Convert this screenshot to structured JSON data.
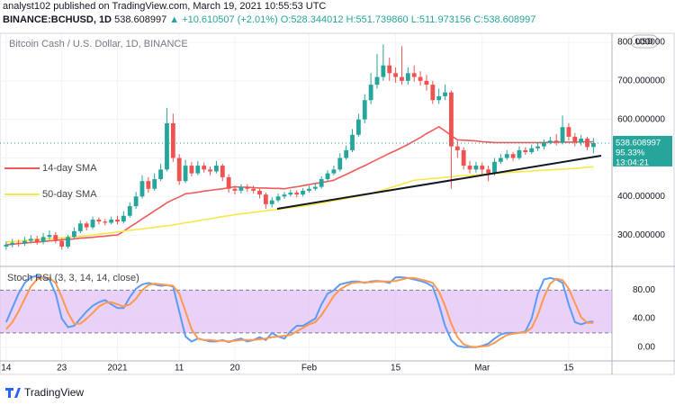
{
  "header": {
    "byline": "analyst102 published on TradingView.com, March 19, 2021 10:55:53 UTC",
    "symbol": "BINANCE:BCHUSD, 1D",
    "price": "538.608997",
    "change": "▲ +10.610507 (+2.01%)",
    "open": "O:528.344012",
    "high": "H:551.739860",
    "low": "L:511.973156",
    "close": "C:538.608997"
  },
  "footer": {
    "brand": "TradingView"
  },
  "chart_data": [
    {
      "type": "candlestick",
      "title": "Bitcoin Cash / U.S. Dollar, 1D, BINANCE",
      "x": [
        "2020-12-14",
        "2020-12-15",
        "2020-12-16",
        "2020-12-17",
        "2020-12-18",
        "2020-12-19",
        "2020-12-20",
        "2020-12-21",
        "2020-12-22",
        "2020-12-23",
        "2020-12-24",
        "2020-12-25",
        "2020-12-26",
        "2020-12-27",
        "2020-12-28",
        "2020-12-29",
        "2020-12-30",
        "2020-12-31",
        "2021-01-01",
        "2021-01-02",
        "2021-01-03",
        "2021-01-04",
        "2021-01-05",
        "2021-01-06",
        "2021-01-07",
        "2021-01-08",
        "2021-01-09",
        "2021-01-10",
        "2021-01-11",
        "2021-01-12",
        "2021-01-13",
        "2021-01-14",
        "2021-01-15",
        "2021-01-16",
        "2021-01-17",
        "2021-01-18",
        "2021-01-19",
        "2021-01-20",
        "2021-01-21",
        "2021-01-22",
        "2021-01-23",
        "2021-01-24",
        "2021-01-25",
        "2021-01-26",
        "2021-01-27",
        "2021-01-28",
        "2021-01-29",
        "2021-01-30",
        "2021-01-31",
        "2021-02-01",
        "2021-02-02",
        "2021-02-03",
        "2021-02-04",
        "2021-02-05",
        "2021-02-06",
        "2021-02-07",
        "2021-02-08",
        "2021-02-09",
        "2021-02-10",
        "2021-02-11",
        "2021-02-12",
        "2021-02-13",
        "2021-02-14",
        "2021-02-15",
        "2021-02-16",
        "2021-02-17",
        "2021-02-18",
        "2021-02-19",
        "2021-02-20",
        "2021-02-21",
        "2021-02-22",
        "2021-02-23",
        "2021-02-24",
        "2021-02-25",
        "2021-02-26",
        "2021-02-27",
        "2021-02-28",
        "2021-03-01",
        "2021-03-02",
        "2021-03-03",
        "2021-03-04",
        "2021-03-05",
        "2021-03-06",
        "2021-03-07",
        "2021-03-08",
        "2021-03-09",
        "2021-03-10",
        "2021-03-11",
        "2021-03-12",
        "2021-03-13",
        "2021-03-14",
        "2021-03-15",
        "2021-03-16",
        "2021-03-17",
        "2021-03-18",
        "2021-03-19"
      ],
      "open": [
        270,
        275,
        280,
        278,
        285,
        290,
        282,
        295,
        300,
        285,
        270,
        295,
        310,
        330,
        320,
        340,
        335,
        332,
        340,
        335,
        350,
        375,
        400,
        440,
        420,
        445,
        470,
        590,
        500,
        440,
        480,
        460,
        480,
        470,
        465,
        480,
        450,
        420,
        415,
        425,
        420,
        415,
        405,
        380,
        390,
        400,
        405,
        410,
        405,
        415,
        420,
        425,
        445,
        460,
        470,
        500,
        520,
        560,
        600,
        650,
        690,
        710,
        740,
        720,
        710,
        700,
        720,
        710,
        700,
        690,
        650,
        660,
        670,
        530,
        520,
        480,
        470,
        480,
        470,
        460,
        490,
        500,
        510,
        500,
        520,
        515,
        525,
        530,
        540,
        545,
        540,
        580,
        555,
        540,
        550,
        528.344012
      ],
      "high": [
        283,
        290,
        288,
        295,
        300,
        298,
        305,
        312,
        308,
        292,
        300,
        320,
        338,
        335,
        348,
        346,
        342,
        348,
        350,
        362,
        385,
        412,
        455,
        450,
        460,
        485,
        630,
        615,
        510,
        495,
        490,
        492,
        488,
        478,
        492,
        485,
        458,
        428,
        432,
        432,
        428,
        420,
        410,
        398,
        408,
        412,
        418,
        416,
        422,
        428,
        434,
        452,
        468,
        480,
        512,
        532,
        575,
        615,
        665,
        720,
        770,
        795,
        760,
        735,
        790,
        735,
        740,
        725,
        715,
        700,
        680,
        690,
        675,
        545,
        528,
        492,
        490,
        488,
        480,
        500,
        510,
        520,
        515,
        530,
        528,
        535,
        540,
        548,
        555,
        562,
        610,
        590,
        565,
        560,
        555,
        551.73986
      ],
      "low": [
        262,
        268,
        270,
        272,
        278,
        275,
        276,
        288,
        278,
        262,
        265,
        290,
        305,
        312,
        315,
        328,
        325,
        328,
        328,
        330,
        345,
        368,
        395,
        410,
        415,
        440,
        465,
        490,
        430,
        435,
        452,
        455,
        462,
        455,
        460,
        440,
        410,
        405,
        408,
        412,
        408,
        395,
        368,
        372,
        385,
        394,
        400,
        398,
        400,
        410,
        415,
        420,
        440,
        455,
        465,
        495,
        515,
        555,
        590,
        640,
        680,
        700,
        700,
        695,
        690,
        690,
        698,
        688,
        675,
        640,
        640,
        650,
        420,
        500,
        470,
        460,
        462,
        455,
        440,
        455,
        485,
        495,
        492,
        495,
        508,
        510,
        518,
        522,
        535,
        532,
        535,
        545,
        530,
        532,
        520,
        511.973156
      ],
      "close": [
        275,
        280,
        278,
        285,
        290,
        282,
        295,
        300,
        285,
        270,
        295,
        310,
        330,
        320,
        340,
        335,
        332,
        340,
        335,
        350,
        375,
        400,
        440,
        420,
        445,
        470,
        590,
        500,
        440,
        480,
        460,
        480,
        470,
        465,
        480,
        450,
        420,
        415,
        425,
        420,
        415,
        405,
        380,
        390,
        400,
        405,
        410,
        405,
        415,
        420,
        425,
        445,
        460,
        470,
        500,
        520,
        560,
        600,
        650,
        690,
        710,
        740,
        720,
        710,
        700,
        720,
        710,
        700,
        690,
        650,
        660,
        670,
        530,
        520,
        480,
        470,
        480,
        470,
        460,
        490,
        500,
        510,
        500,
        520,
        515,
        525,
        530,
        540,
        545,
        540,
        580,
        555,
        540,
        550,
        528.344012,
        538.608997
      ],
      "up_color": "#26a69a",
      "down_color": "#ef5350",
      "series": [
        {
          "name": "14-day SMA",
          "color": "#f05a5a",
          "values": [
            275,
            276,
            278,
            279,
            281,
            282,
            283,
            285,
            286,
            288,
            289,
            290,
            292,
            293,
            294,
            296,
            297,
            299,
            300,
            310,
            321,
            331,
            342,
            352,
            363,
            373,
            384,
            392,
            399,
            407,
            409,
            411,
            414,
            416,
            418,
            420,
            423,
            425,
            424,
            424,
            423,
            422,
            422,
            421,
            421,
            420,
            423,
            425,
            428,
            431,
            434,
            436,
            439,
            442,
            450,
            457,
            465,
            473,
            480,
            488,
            496,
            504,
            512,
            519,
            527,
            535,
            544,
            553,
            563,
            572,
            581,
            570,
            558,
            547,
            546,
            545,
            544,
            542,
            541,
            540,
            540,
            540,
            540,
            540,
            540,
            540,
            540,
            540,
            541,
            541,
            541,
            541,
            541,
            542,
            542,
            542
          ]
        },
        {
          "name": "50-day SMA",
          "color": "#f7e84a",
          "values": [
            282,
            283,
            284,
            286,
            287,
            288,
            289,
            291,
            292,
            293,
            294,
            296,
            297,
            298,
            300,
            302,
            304,
            306,
            308,
            310,
            312,
            314,
            316,
            318,
            320,
            322,
            324,
            326,
            329,
            332,
            334,
            337,
            340,
            342,
            345,
            348,
            350,
            353,
            355,
            357,
            359,
            361,
            363,
            365,
            367,
            369,
            371,
            373,
            375,
            377,
            380,
            383,
            386,
            389,
            392,
            395,
            398,
            401,
            404,
            407,
            412,
            417,
            422,
            427,
            432,
            437,
            442,
            444,
            445,
            447,
            448,
            450,
            451,
            453,
            454,
            455,
            456,
            457,
            458,
            460,
            461,
            462,
            463,
            464,
            465,
            466,
            467,
            468,
            469,
            470,
            471,
            472,
            473,
            474,
            476,
            477
          ]
        }
      ],
      "ylim": [
        221,
        821
      ],
      "yticks": [
        {
          "value": 300,
          "label": "300.000000"
        },
        {
          "value": 400,
          "label": "400.000000"
        },
        {
          "value": 500,
          "label": "500.000000"
        },
        {
          "value": 600,
          "label": "600.000000"
        },
        {
          "value": 700,
          "label": "700.000000"
        },
        {
          "value": 800,
          "label": "800.000000"
        }
      ],
      "xlim": [
        "2020-12-13",
        "2021-03-22"
      ],
      "xticks": [
        {
          "value": "2020-12-14",
          "label": "14"
        },
        {
          "value": "2020-12-23",
          "label": "23"
        },
        {
          "value": "2021-01-01",
          "label": "2021"
        },
        {
          "value": "2021-01-11",
          "label": "11"
        },
        {
          "value": "2021-01-20",
          "label": "20"
        },
        {
          "value": "2021-02-01",
          "label": "Feb"
        },
        {
          "value": "2021-02-15",
          "label": "15"
        },
        {
          "value": "2021-03-01",
          "label": "Mar"
        },
        {
          "value": "2021-03-15",
          "label": "15"
        }
      ],
      "grid": true,
      "currency": "USD",
      "last_price_label": "538.608997",
      "percent_label": "95.33%",
      "countdown": "13:04:21"
    },
    {
      "type": "line",
      "title": "Stoch RSI (3, 3, 14, 14, close)",
      "series": [
        {
          "color": "#5b9cf6",
          "values": [
            35,
            55,
            75,
            90,
            98,
            100,
            97,
            95,
            75,
            40,
            28,
            30,
            40,
            50,
            58,
            63,
            66,
            60,
            55,
            55,
            70,
            82,
            88,
            90,
            88,
            86,
            87,
            85,
            50,
            15,
            8,
            12,
            10,
            8,
            8,
            10,
            7,
            10,
            12,
            8,
            10,
            14,
            10,
            20,
            15,
            12,
            22,
            30,
            30,
            35,
            40,
            60,
            75,
            80,
            88,
            90,
            92,
            92,
            90,
            92,
            93,
            92,
            90,
            98,
            98,
            97,
            95,
            93,
            90,
            85,
            60,
            30,
            10,
            2,
            0,
            0,
            0,
            2,
            5,
            12,
            18,
            20,
            20,
            20,
            22,
            40,
            75,
            95,
            97,
            95,
            90,
            60,
            35,
            32,
            35,
            36
          ]
        },
        {
          "color": "#ff9850",
          "values": [
            25,
            35,
            50,
            68,
            85,
            95,
            98,
            97,
            90,
            70,
            48,
            33,
            33,
            40,
            48,
            57,
            62,
            63,
            60,
            57,
            60,
            68,
            80,
            87,
            89,
            88,
            87,
            86,
            75,
            50,
            25,
            12,
            10,
            10,
            9,
            9,
            8,
            9,
            10,
            10,
            10,
            11,
            12,
            14,
            15,
            16,
            17,
            22,
            27,
            32,
            35,
            45,
            58,
            72,
            81,
            86,
            90,
            91,
            91,
            91,
            92,
            92,
            92,
            93,
            95,
            97,
            97,
            95,
            93,
            90,
            78,
            58,
            33,
            14,
            4,
            1,
            0,
            1,
            2,
            6,
            12,
            17,
            19,
            20,
            21,
            27,
            45,
            70,
            89,
            96,
            94,
            82,
            62,
            42,
            34,
            34
          ]
        }
      ],
      "ylim": [
        -18,
        112
      ],
      "yticks": [
        {
          "value": 0,
          "label": "0.00"
        },
        {
          "value": 40,
          "label": "40.00"
        },
        {
          "value": 80,
          "label": "80.00"
        }
      ],
      "band": [
        20,
        80
      ],
      "band_color": "#e4c6f5",
      "grid": true
    }
  ]
}
